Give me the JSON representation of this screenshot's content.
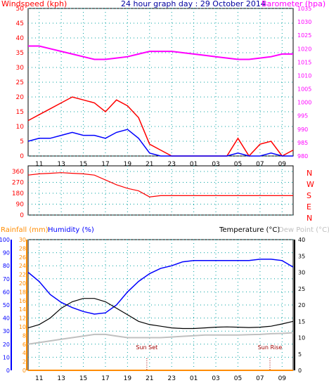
{
  "chart_data": [
    {
      "type": "line",
      "panel": "wind-barometer",
      "title": "24 hour graph day : 29 October 2014",
      "ylabel_left": "Windspeed (kph)",
      "ylabel_right": "Barometer (hpa)",
      "ylim_left": [
        0,
        50
      ],
      "ylim_right": [
        980,
        1035
      ],
      "yticks_left": [
        "0",
        "5",
        "10",
        "15",
        "20",
        "25",
        "30",
        "35",
        "40",
        "45",
        "50"
      ],
      "yticks_right": [
        "980",
        "985",
        "990",
        "995",
        "1000",
        "1005",
        "1010",
        "1015",
        "1020",
        "1025",
        "1030",
        "1035"
      ],
      "xticks": [
        "11",
        "13",
        "15",
        "17",
        "19",
        "21",
        "23",
        "01",
        "03",
        "05",
        "07",
        "09"
      ],
      "colors": {
        "wind_gust": "#ff0000",
        "wind_avg": "#0000ff",
        "wind_low": "#008000",
        "barometer": "#ff00ff",
        "left_axis": "#ff0000",
        "right_axis": "#ff00ff"
      },
      "series": [
        {
          "name": "Barometer",
          "x_hours": [
            0,
            1,
            2,
            3,
            4,
            5,
            6,
            7,
            8,
            9,
            10,
            11,
            12,
            13,
            14,
            15,
            16,
            17,
            18,
            19,
            20,
            21,
            22,
            23,
            24
          ],
          "values": [
            1021,
            1021,
            1020,
            1019,
            1018,
            1017,
            1016,
            1016,
            1016.5,
            1017,
            1018,
            1019,
            1019,
            1019,
            1018.5,
            1018,
            1017.5,
            1017,
            1016.5,
            1016,
            1016,
            1016.5,
            1017,
            1018,
            1018
          ]
        },
        {
          "name": "Wind speed",
          "x_hours": [
            0,
            1,
            2,
            3,
            4,
            5,
            6,
            7,
            8,
            9,
            10,
            11,
            12,
            13,
            14,
            15,
            16,
            17,
            18,
            19,
            20,
            21,
            22,
            23,
            24
          ],
          "values": [
            5,
            6,
            6,
            7,
            8,
            7,
            7,
            6,
            8,
            9,
            6,
            1,
            0,
            0,
            0,
            0,
            0,
            0,
            0,
            1,
            0,
            0,
            1,
            0,
            0
          ]
        },
        {
          "name": "Wind gust",
          "x_hours": [
            0,
            1,
            2,
            3,
            4,
            5,
            6,
            7,
            8,
            9,
            10,
            11,
            12,
            13,
            14,
            15,
            16,
            17,
            18,
            19,
            20,
            21,
            22,
            23,
            24
          ],
          "values": [
            12,
            14,
            16,
            18,
            20,
            19,
            18,
            15,
            19,
            17,
            13,
            4,
            2,
            0,
            0,
            0,
            0,
            0,
            0,
            6,
            0,
            4,
            5,
            0,
            2
          ]
        }
      ]
    },
    {
      "type": "scatter",
      "panel": "wind-direction",
      "ylim": [
        0,
        360
      ],
      "yticks": [
        "0",
        "90",
        "180",
        "270",
        "360"
      ],
      "compass_labels": [
        "N",
        "W",
        "S",
        "E",
        "N"
      ],
      "xticks": [
        "11",
        "13",
        "15",
        "17",
        "19",
        "21",
        "23",
        "01",
        "03",
        "05",
        "07",
        "09"
      ],
      "colors": {
        "direction": "#ff0000",
        "compass": "#ff0000"
      },
      "series": [
        {
          "name": "Wind direction",
          "x_hours": [
            0,
            1,
            2,
            3,
            4,
            5,
            6,
            7,
            8,
            9,
            10,
            11,
            12,
            14,
            16,
            18,
            20,
            22,
            24
          ],
          "values": [
            330,
            340,
            345,
            350,
            345,
            340,
            330,
            290,
            250,
            220,
            200,
            150,
            160,
            160,
            160,
            160,
            160,
            160,
            160
          ]
        }
      ]
    },
    {
      "type": "line",
      "panel": "temp-humidity-rain",
      "legend": [
        "Rainfall (mm)",
        "Humidity (%)",
        "Temperature (°C)",
        "Dew Point (°C)"
      ],
      "ylim_humidity": [
        0,
        100
      ],
      "ylim_rain": [
        0,
        30
      ],
      "ylim_temp": [
        0,
        40
      ],
      "yticks_humidity": [
        "0",
        "10",
        "20",
        "30",
        "40",
        "50",
        "60",
        "70",
        "80",
        "90",
        "100"
      ],
      "yticks_rain": [
        "0",
        "2",
        "4",
        "6",
        "8",
        "10",
        "12",
        "14",
        "16",
        "18",
        "20",
        "22",
        "24",
        "26",
        "28",
        "30"
      ],
      "yticks_temp": [
        "0",
        "5",
        "10",
        "15",
        "20",
        "25",
        "30",
        "35",
        "40"
      ],
      "xticks": [
        "11",
        "13",
        "15",
        "17",
        "19",
        "21",
        "23",
        "01",
        "03",
        "05",
        "07",
        "09"
      ],
      "annotations": [
        "Sun Set",
        "Sun Rise"
      ],
      "annotation_x_hours": [
        10.75,
        21.9
      ],
      "colors": {
        "rainfall": "#ff8c00",
        "humidity": "#0000ff",
        "temperature": "#000000",
        "dewpoint": "#c0c0c0"
      },
      "series": [
        {
          "name": "Humidity",
          "x_hours": [
            0,
            1,
            2,
            3,
            4,
            5,
            6,
            7,
            8,
            9,
            10,
            11,
            12,
            13,
            14,
            15,
            16,
            17,
            18,
            19,
            20,
            21,
            22,
            23,
            24
          ],
          "values": [
            75,
            68,
            58,
            52,
            48,
            45,
            43,
            44,
            50,
            60,
            68,
            74,
            78,
            80,
            83,
            84,
            84,
            84,
            84,
            84,
            84,
            85,
            85,
            84,
            79
          ]
        },
        {
          "name": "Temperature",
          "x_hours": [
            0,
            1,
            2,
            3,
            4,
            5,
            6,
            7,
            8,
            9,
            10,
            11,
            12,
            13,
            14,
            15,
            16,
            17,
            18,
            19,
            20,
            21,
            22,
            23,
            24
          ],
          "values": [
            13,
            14,
            16,
            19,
            21,
            22,
            22,
            21,
            19,
            17,
            15,
            14,
            13.5,
            13,
            12.8,
            12.8,
            13,
            13.2,
            13.3,
            13.2,
            13.1,
            13.2,
            13.5,
            14.2,
            15
          ]
        },
        {
          "name": "Dew Point",
          "x_hours": [
            0,
            1,
            2,
            3,
            4,
            5,
            6,
            7,
            8,
            9,
            10,
            11,
            12,
            13,
            14,
            15,
            16,
            17,
            18,
            19,
            20,
            21,
            22,
            23,
            24
          ],
          "values": [
            8,
            8.5,
            9,
            9.5,
            10,
            10.5,
            11,
            11,
            10.5,
            10,
            10,
            10,
            10,
            10.2,
            10.4,
            10.6,
            10.8,
            10.8,
            10.8,
            10.8,
            10.9,
            11,
            11.2,
            11.3,
            11.5
          ]
        },
        {
          "name": "Rainfall",
          "x_hours": [
            0,
            24
          ],
          "values": [
            0,
            0
          ]
        }
      ]
    }
  ]
}
